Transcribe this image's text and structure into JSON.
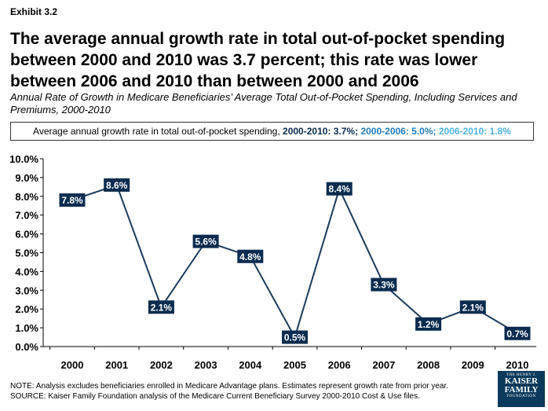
{
  "header": {
    "exhibit": "Exhibit 3.2",
    "title": "The average annual growth rate in total out-of-pocket spending between 2000 and 2010 was 3.7 percent; this rate was lower between 2006 and 2010 than between 2000 and 2006",
    "subtitle": "Annual Rate of Growth in Medicare Beneficiaries’ Average Total Out-of-Pocket Spending, Including Services and Premiums, 2000-2010"
  },
  "summary": {
    "prefix": "Average annual growth rate in total out-of-pocket spending,",
    "rate_2000_2010": "2000-2010: 3.7%;",
    "rate_2000_2006": "2000-2006: 5.0%;",
    "rate_2006_2010": "2006-2010: 1.8%",
    "colors": {
      "rate_2000_2010": "#0b2c4f",
      "rate_2000_2006": "#1f7bbf",
      "rate_2006_2010": "#4cb3e0"
    }
  },
  "chart_data": {
    "type": "line",
    "x": [
      "2000",
      "2001",
      "2002",
      "2003",
      "2004",
      "2005",
      "2006",
      "2007",
      "2008",
      "2009",
      "2010"
    ],
    "series": [
      {
        "values": [
          7.8,
          8.6,
          2.1,
          5.6,
          4.8,
          0.5,
          8.4,
          3.3,
          1.2,
          2.1,
          0.7
        ],
        "labels": [
          "7.8%",
          "8.6%",
          "2.1%",
          "5.6%",
          "4.8%",
          "0.5%",
          "8.4%",
          "3.3%",
          "1.2%",
          "2.1%",
          "0.7%"
        ]
      }
    ],
    "ylim": [
      0,
      10
    ],
    "yticks": [
      "0.0%",
      "1.0%",
      "2.0%",
      "3.0%",
      "4.0%",
      "5.0%",
      "6.0%",
      "7.0%",
      "8.0%",
      "9.0%",
      "10.0%"
    ],
    "grid": false,
    "line_color": "#1b3a5c",
    "label_bg_color": "#0b2c4f"
  },
  "notes": {
    "note": "NOTE: Analysis excludes beneficiaries enrolled in Medicare Advantage plans. Estimates represent growth rate from prior year.",
    "source": "SOURCE: Kaiser Family Foundation analysis of the Medicare Current Beneficiary Survey 2000-2010 Cost & Use files."
  },
  "logo": {
    "line1": "THE HENRY J.",
    "line2": "KAISER",
    "line3": "FAMILY",
    "line4": "FOUNDATION"
  }
}
